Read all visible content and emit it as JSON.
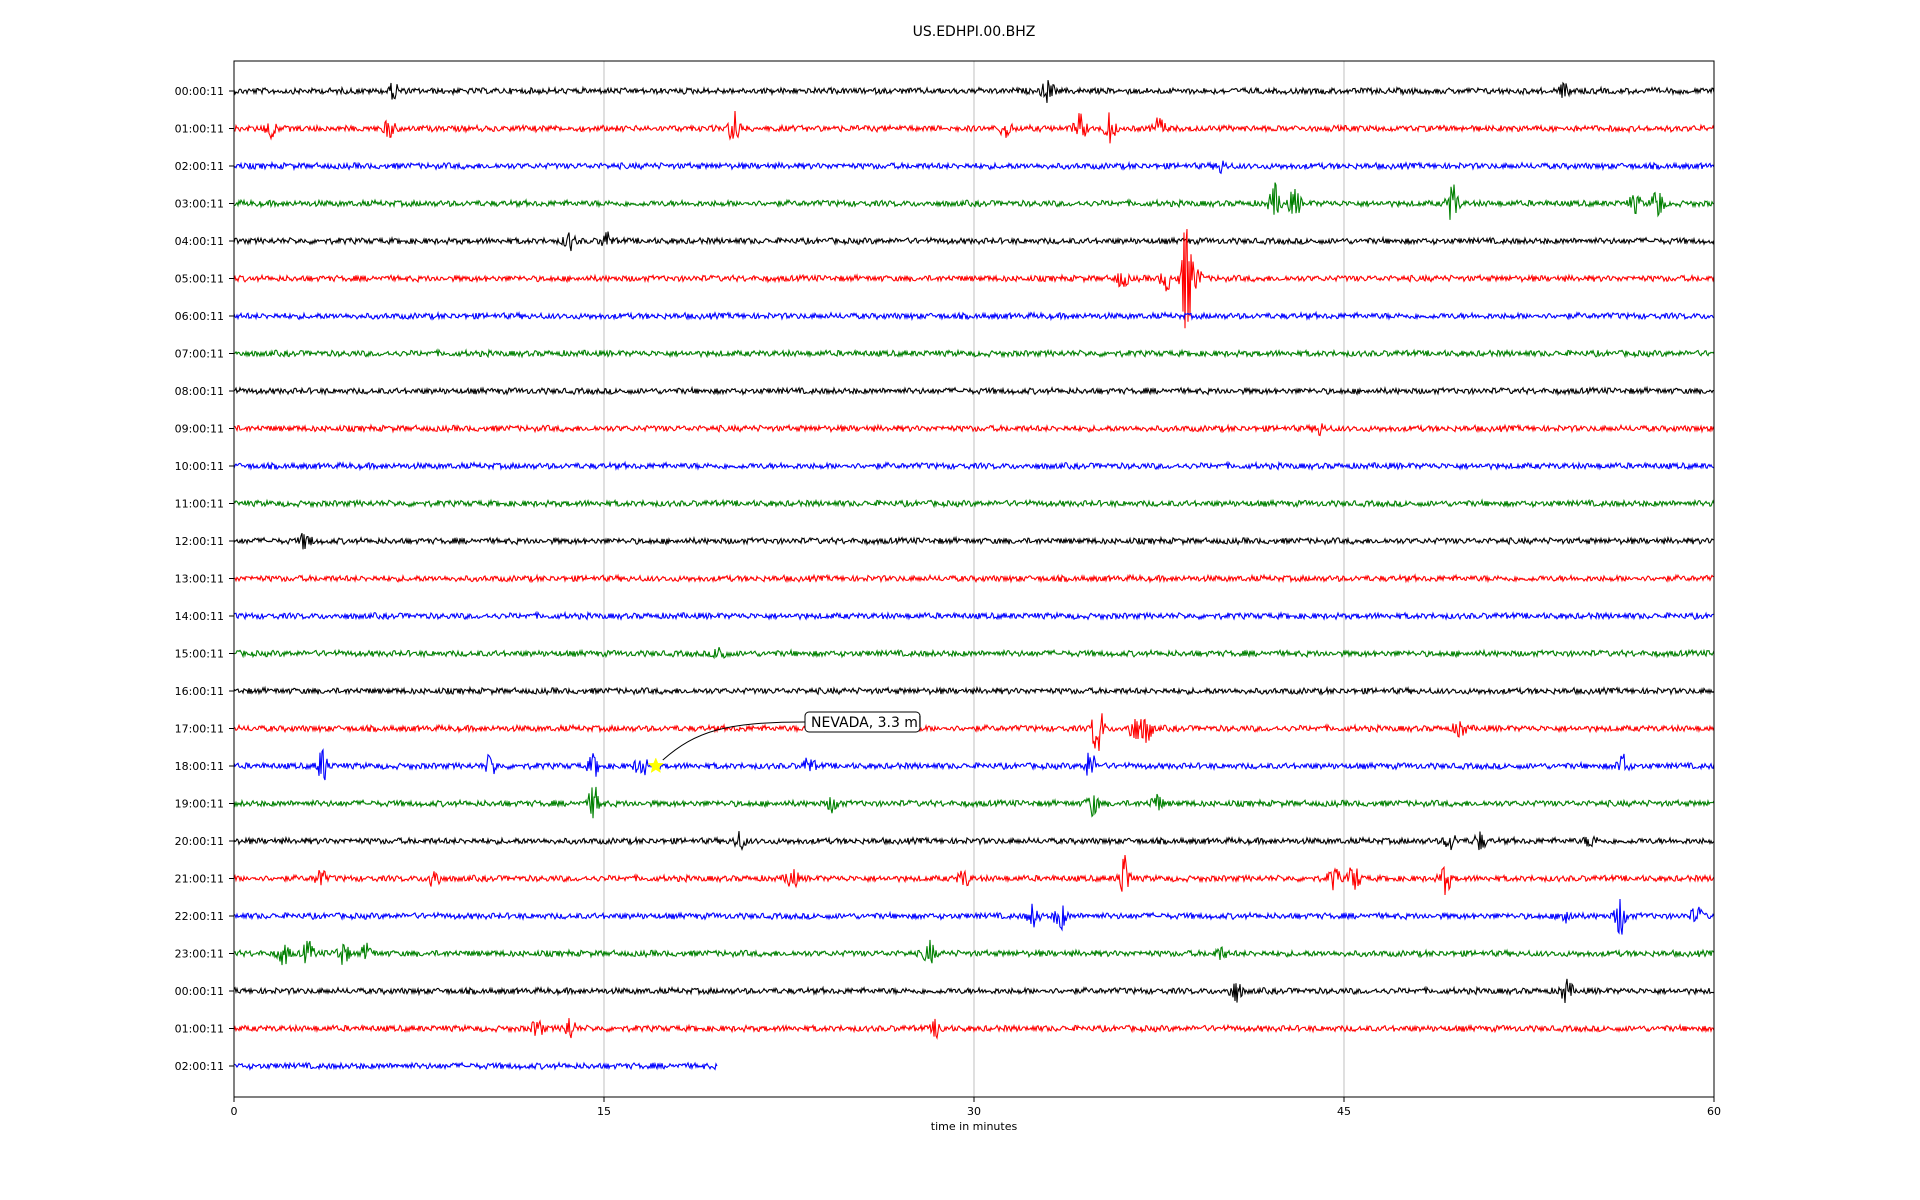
{
  "chart_data": {
    "type": "line",
    "title": "US.EDHPI.00.BHZ",
    "xlabel": "time in minutes",
    "ylabel": "",
    "xlim": [
      0,
      60
    ],
    "x_ticks": [
      "0",
      "15",
      "30",
      "45",
      "60"
    ],
    "x_tick_values": [
      0,
      15,
      30,
      45,
      60
    ],
    "grid": "vertical",
    "trace_colors": [
      "#000000",
      "#ff0000",
      "#0000ff",
      "#008000"
    ],
    "traces": [
      {
        "label": "00:00:11",
        "end": 60,
        "events": [
          [
            6.5,
            0.3
          ],
          [
            33,
            0.4
          ],
          [
            54,
            0.3
          ]
        ]
      },
      {
        "label": "01:00:11",
        "end": 60,
        "events": [
          [
            1.5,
            0.3
          ],
          [
            6.3,
            0.3
          ],
          [
            20.3,
            0.6
          ],
          [
            31.3,
            0.3
          ],
          [
            34.3,
            0.5
          ],
          [
            35.5,
            0.5
          ],
          [
            37.5,
            0.4
          ]
        ]
      },
      {
        "label": "02:00:11",
        "end": 60,
        "events": [
          [
            40,
            0.2
          ]
        ]
      },
      {
        "label": "03:00:11",
        "end": 60,
        "events": [
          [
            42.2,
            0.6
          ],
          [
            43,
            0.5
          ],
          [
            49.4,
            0.7
          ],
          [
            56.8,
            0.3
          ],
          [
            57.7,
            0.6
          ]
        ]
      },
      {
        "label": "04:00:11",
        "end": 60,
        "events": [
          [
            13.6,
            0.3
          ],
          [
            15.1,
            0.3
          ]
        ]
      },
      {
        "label": "05:00:11",
        "end": 60,
        "events": [
          [
            36,
            0.3
          ],
          [
            37.8,
            0.4
          ],
          [
            38.6,
            2.0
          ],
          [
            39,
            0.4
          ]
        ]
      },
      {
        "label": "06:00:11",
        "end": 60,
        "events": []
      },
      {
        "label": "07:00:11",
        "end": 60,
        "events": []
      },
      {
        "label": "08:00:11",
        "end": 60,
        "events": []
      },
      {
        "label": "09:00:11",
        "end": 60,
        "events": [
          [
            44,
            0.2
          ]
        ]
      },
      {
        "label": "10:00:11",
        "end": 60,
        "events": []
      },
      {
        "label": "11:00:11",
        "end": 60,
        "events": []
      },
      {
        "label": "12:00:11",
        "end": 60,
        "events": [
          [
            2.9,
            0.3
          ]
        ]
      },
      {
        "label": "13:00:11",
        "end": 60,
        "events": []
      },
      {
        "label": "14:00:11",
        "end": 60,
        "events": []
      },
      {
        "label": "15:00:11",
        "end": 60,
        "events": [
          [
            19.7,
            0.3
          ]
        ]
      },
      {
        "label": "16:00:11",
        "end": 60,
        "events": []
      },
      {
        "label": "17:00:11",
        "end": 60,
        "events": [
          [
            35,
            1.0
          ],
          [
            36.5,
            0.5
          ],
          [
            37,
            0.5
          ],
          [
            49.7,
            0.3
          ]
        ]
      },
      {
        "label": "18:00:11",
        "end": 60,
        "events": [
          [
            3.6,
            0.6
          ],
          [
            10.4,
            0.4
          ],
          [
            14.6,
            0.4
          ],
          [
            16.5,
            0.4
          ],
          [
            23.3,
            0.3
          ],
          [
            34.7,
            0.5
          ],
          [
            56.3,
            0.4
          ]
        ]
      },
      {
        "label": "19:00:11",
        "end": 60,
        "events": [
          [
            14.6,
            0.6
          ],
          [
            24.3,
            0.3
          ],
          [
            34.8,
            0.4
          ],
          [
            37.4,
            0.3
          ]
        ]
      },
      {
        "label": "20:00:11",
        "end": 60,
        "events": [
          [
            20.5,
            0.3
          ],
          [
            49.3,
            0.3
          ],
          [
            50.5,
            0.3
          ],
          [
            55,
            0.2
          ]
        ]
      },
      {
        "label": "21:00:11",
        "end": 60,
        "events": [
          [
            3.5,
            0.3
          ],
          [
            8.1,
            0.4
          ],
          [
            22.6,
            0.4
          ],
          [
            29.6,
            0.3
          ],
          [
            36.1,
            0.8
          ],
          [
            44.6,
            0.4
          ],
          [
            45.4,
            0.5
          ],
          [
            49.1,
            0.5
          ]
        ]
      },
      {
        "label": "22:00:11",
        "end": 60,
        "events": [
          [
            32.4,
            0.4
          ],
          [
            33.5,
            0.5
          ],
          [
            54,
            0.3
          ],
          [
            56.2,
            0.7
          ],
          [
            59.3,
            0.3
          ]
        ]
      },
      {
        "label": "23:00:11",
        "end": 60,
        "events": [
          [
            2,
            0.4
          ],
          [
            3,
            0.4
          ],
          [
            4.4,
            0.4
          ],
          [
            5.4,
            0.3
          ],
          [
            28.2,
            0.4
          ],
          [
            40,
            0.2
          ]
        ]
      },
      {
        "label": "00:00:11",
        "end": 60,
        "events": [
          [
            40.6,
            0.4
          ],
          [
            54,
            0.4
          ]
        ]
      },
      {
        "label": "01:00:11",
        "end": 60,
        "events": [
          [
            12.3,
            0.3
          ],
          [
            13.6,
            0.4
          ],
          [
            28.5,
            0.3
          ]
        ]
      },
      {
        "label": "02:00:11",
        "end": 19.6,
        "events": []
      }
    ],
    "annotations": [
      {
        "text": "NEVADA, 3.3 ml",
        "trace_index": 18,
        "x": 17.1,
        "marker": "star",
        "marker_color": "#ffff00"
      }
    ]
  }
}
